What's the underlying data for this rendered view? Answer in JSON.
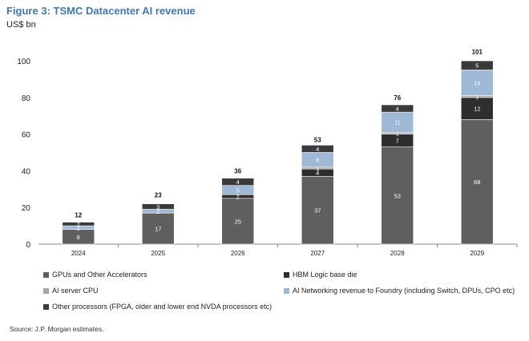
{
  "title": "Figure 3: TSMC Datacenter AI revenue",
  "unit": "US$ bn",
  "source": "Source: J.P. Morgan estimates.",
  "chart_data": {
    "type": "bar",
    "stacked": true,
    "categories": [
      "2024",
      "2025",
      "2026",
      "2027",
      "2028",
      "2029"
    ],
    "ylim": [
      0,
      100
    ],
    "yticks": [
      0,
      20,
      40,
      60,
      80,
      100
    ],
    "grid": false,
    "legend_position": "bottom",
    "totals": [
      12,
      23,
      36,
      53,
      76,
      101
    ],
    "series": [
      {
        "name": "GPUs and Other Accelerators",
        "color": "#5f5f5f",
        "text_color": "#ffffff",
        "values": [
          8,
          17,
          25,
          37,
          53,
          68
        ]
      },
      {
        "name": "HBM Logic base die",
        "color": "#2e2e2e",
        "text_color": "#ffffff",
        "values": [
          0,
          0,
          2,
          4,
          7,
          12
        ]
      },
      {
        "name": "AI server CPU",
        "color": "#a6a6a6",
        "text_color": "#ffffff",
        "values": [
          0,
          0,
          0,
          1,
          1,
          1
        ]
      },
      {
        "name": "AI Networking revenue to Foundry (including Switch, DPUs, CPO etc)",
        "color": "#9fb8d6",
        "text_color": "#ffffff",
        "values": [
          2,
          2,
          5,
          8,
          11,
          14
        ]
      },
      {
        "name": "Other processors (FPGA, older and lower end NVDA processors etc)",
        "color": "#3a3a3a",
        "text_color": "#ffffff",
        "values": [
          2,
          3,
          4,
          4,
          4,
          5
        ]
      }
    ]
  }
}
